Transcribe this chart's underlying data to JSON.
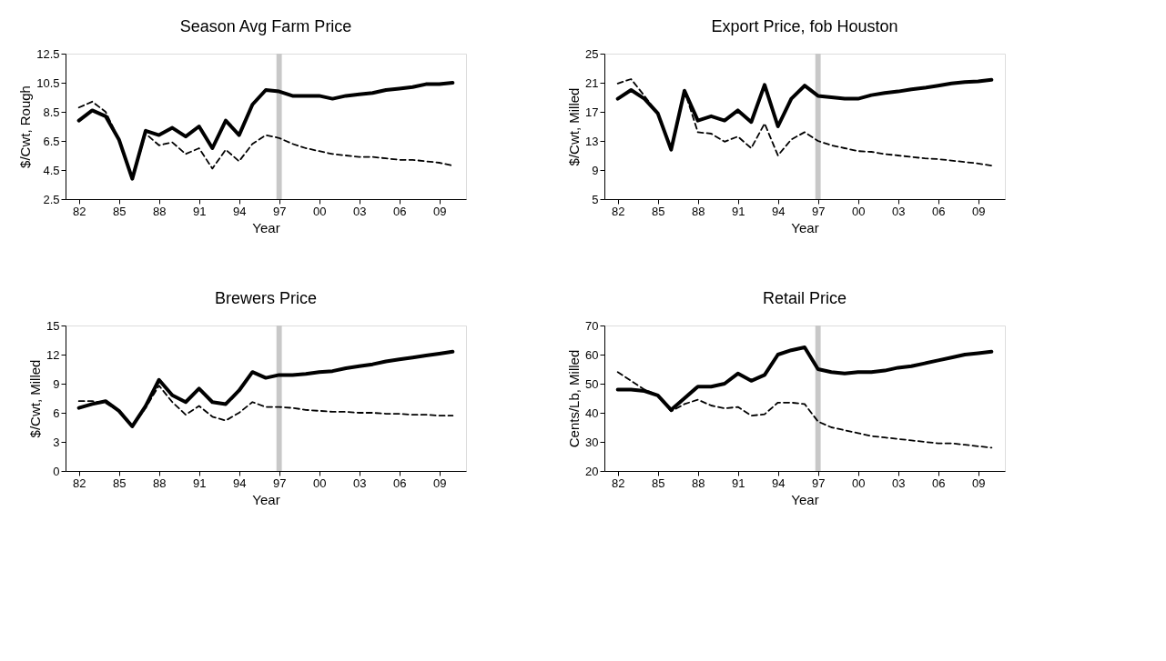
{
  "chart_data": [
    {
      "type": "line",
      "title": "Season Avg Farm Price",
      "xlabel": "Year",
      "ylabel": "$/Cwt, Rough",
      "grid": false,
      "marker": "none",
      "x": [
        1982,
        1983,
        1984,
        1985,
        1986,
        1987,
        1988,
        1989,
        1990,
        1991,
        1992,
        1993,
        1994,
        1995,
        1996,
        1997,
        1998,
        1999,
        2000,
        2001,
        2002,
        2003,
        2004,
        2005,
        2006,
        2007,
        2008,
        2009,
        2010
      ],
      "xlim": [
        1981,
        2011
      ],
      "xticks": [
        {
          "value": 1982,
          "label": "82"
        },
        {
          "value": 1985,
          "label": "85"
        },
        {
          "value": 1988,
          "label": "88"
        },
        {
          "value": 1991,
          "label": "91"
        },
        {
          "value": 1994,
          "label": "94"
        },
        {
          "value": 1997,
          "label": "97"
        },
        {
          "value": 2000,
          "label": "00"
        },
        {
          "value": 2003,
          "label": "03"
        },
        {
          "value": 2006,
          "label": "06"
        },
        {
          "value": 2009,
          "label": "09"
        }
      ],
      "ylim": [
        2.5,
        12.5
      ],
      "yticks": [
        2.5,
        4.5,
        6.5,
        8.5,
        10.5,
        12.5
      ],
      "bands": [
        {
          "axis": "x",
          "from": 1996.8,
          "to": 1997.2,
          "color": "#c8c8c8"
        }
      ],
      "series": [
        {
          "color": "#000000",
          "line_style": "solid",
          "values": [
            7.9,
            8.6,
            8.2,
            6.6,
            3.9,
            7.2,
            6.9,
            7.4,
            6.8,
            7.5,
            6.0,
            7.9,
            6.9,
            9.0,
            10.0,
            9.9,
            9.6,
            9.6,
            9.6,
            9.4,
            9.6,
            9.7,
            9.8,
            10.0,
            10.1,
            10.2,
            10.4,
            10.4,
            10.5
          ]
        },
        {
          "color": "#000000",
          "line_style": "dashed",
          "values": [
            8.8,
            9.2,
            8.5,
            6.6,
            3.9,
            7.0,
            6.2,
            6.4,
            5.6,
            6.0,
            4.6,
            5.9,
            5.1,
            6.3,
            6.9,
            6.7,
            6.3,
            6.0,
            5.8,
            5.6,
            5.5,
            5.4,
            5.4,
            5.3,
            5.2,
            5.2,
            5.1,
            5.0,
            4.8
          ]
        }
      ]
    },
    {
      "type": "line",
      "title": "Export Price, fob Houston",
      "xlabel": "Year",
      "ylabel": "$/Cwt, Milled",
      "grid": false,
      "marker": "none",
      "x": [
        1982,
        1983,
        1984,
        1985,
        1986,
        1987,
        1988,
        1989,
        1990,
        1991,
        1992,
        1993,
        1994,
        1995,
        1996,
        1997,
        1998,
        1999,
        2000,
        2001,
        2002,
        2003,
        2004,
        2005,
        2006,
        2007,
        2008,
        2009,
        2010
      ],
      "xlim": [
        1981,
        2011
      ],
      "xticks": [
        {
          "value": 1982,
          "label": "82"
        },
        {
          "value": 1985,
          "label": "85"
        },
        {
          "value": 1988,
          "label": "88"
        },
        {
          "value": 1991,
          "label": "91"
        },
        {
          "value": 1994,
          "label": "94"
        },
        {
          "value": 1997,
          "label": "97"
        },
        {
          "value": 2000,
          "label": "00"
        },
        {
          "value": 2003,
          "label": "03"
        },
        {
          "value": 2006,
          "label": "06"
        },
        {
          "value": 2009,
          "label": "09"
        }
      ],
      "ylim": [
        5,
        25
      ],
      "yticks": [
        5,
        9,
        13,
        17,
        21,
        25
      ],
      "bands": [
        {
          "axis": "x",
          "from": 1996.8,
          "to": 1997.2,
          "color": "#c8c8c8"
        }
      ],
      "series": [
        {
          "color": "#000000",
          "line_style": "solid",
          "values": [
            18.8,
            20.0,
            18.8,
            16.8,
            11.8,
            19.9,
            15.8,
            16.4,
            15.8,
            17.2,
            15.6,
            20.7,
            15.0,
            18.8,
            20.6,
            19.2,
            19.0,
            18.8,
            18.8,
            19.3,
            19.6,
            19.8,
            20.1,
            20.3,
            20.6,
            20.9,
            21.1,
            21.2,
            21.4
          ]
        },
        {
          "color": "#000000",
          "line_style": "dashed",
          "values": [
            20.9,
            21.5,
            19.2,
            16.8,
            11.8,
            19.9,
            14.2,
            14.0,
            12.9,
            13.6,
            12.0,
            15.4,
            11.0,
            13.2,
            14.2,
            13.0,
            12.4,
            12.0,
            11.6,
            11.5,
            11.2,
            11.0,
            10.8,
            10.6,
            10.5,
            10.3,
            10.1,
            9.9,
            9.6
          ]
        }
      ]
    },
    {
      "type": "line",
      "title": "Brewers Price",
      "xlabel": "Year",
      "ylabel": "$/Cwt, Milled",
      "grid": false,
      "marker": "none",
      "x": [
        1982,
        1983,
        1984,
        1985,
        1986,
        1987,
        1988,
        1989,
        1990,
        1991,
        1992,
        1993,
        1994,
        1995,
        1996,
        1997,
        1998,
        1999,
        2000,
        2001,
        2002,
        2003,
        2004,
        2005,
        2006,
        2007,
        2008,
        2009,
        2010
      ],
      "xlim": [
        1981,
        2011
      ],
      "xticks": [
        {
          "value": 1982,
          "label": "82"
        },
        {
          "value": 1985,
          "label": "85"
        },
        {
          "value": 1988,
          "label": "88"
        },
        {
          "value": 1991,
          "label": "91"
        },
        {
          "value": 1994,
          "label": "94"
        },
        {
          "value": 1997,
          "label": "97"
        },
        {
          "value": 2000,
          "label": "00"
        },
        {
          "value": 2003,
          "label": "03"
        },
        {
          "value": 2006,
          "label": "06"
        },
        {
          "value": 2009,
          "label": "09"
        }
      ],
      "ylim": [
        0,
        15
      ],
      "yticks": [
        0,
        3,
        6,
        9,
        12,
        15
      ],
      "bands": [
        {
          "axis": "x",
          "from": 1996.8,
          "to": 1997.2,
          "color": "#c8c8c8"
        }
      ],
      "series": [
        {
          "color": "#000000",
          "line_style": "solid",
          "values": [
            6.5,
            6.9,
            7.2,
            6.2,
            4.6,
            6.7,
            9.4,
            7.8,
            7.1,
            8.5,
            7.1,
            6.9,
            8.3,
            10.2,
            9.6,
            9.9,
            9.9,
            10.0,
            10.2,
            10.3,
            10.6,
            10.8,
            11.0,
            11.3,
            11.5,
            11.7,
            11.9,
            12.1,
            12.3
          ]
        },
        {
          "color": "#000000",
          "line_style": "dashed",
          "values": [
            7.2,
            7.2,
            7.0,
            6.2,
            4.6,
            6.5,
            8.8,
            7.1,
            5.8,
            6.7,
            5.6,
            5.2,
            6.0,
            7.1,
            6.6,
            6.6,
            6.5,
            6.3,
            6.2,
            6.1,
            6.1,
            6.0,
            6.0,
            5.9,
            5.9,
            5.8,
            5.8,
            5.7,
            5.7
          ]
        }
      ]
    },
    {
      "type": "line",
      "title": "Retail Price",
      "xlabel": "Year",
      "ylabel": "Cents/Lb, Milled",
      "grid": false,
      "marker": "none",
      "x": [
        1982,
        1983,
        1984,
        1985,
        1986,
        1987,
        1988,
        1989,
        1990,
        1991,
        1992,
        1993,
        1994,
        1995,
        1996,
        1997,
        1998,
        1999,
        2000,
        2001,
        2002,
        2003,
        2004,
        2005,
        2006,
        2007,
        2008,
        2009,
        2010
      ],
      "xlim": [
        1981,
        2011
      ],
      "xticks": [
        {
          "value": 1982,
          "label": "82"
        },
        {
          "value": 1985,
          "label": "85"
        },
        {
          "value": 1988,
          "label": "88"
        },
        {
          "value": 1991,
          "label": "91"
        },
        {
          "value": 1994,
          "label": "94"
        },
        {
          "value": 1997,
          "label": "97"
        },
        {
          "value": 2000,
          "label": "00"
        },
        {
          "value": 2003,
          "label": "03"
        },
        {
          "value": 2006,
          "label": "06"
        },
        {
          "value": 2009,
          "label": "09"
        }
      ],
      "ylim": [
        20,
        70
      ],
      "yticks": [
        20,
        30,
        40,
        50,
        60,
        70
      ],
      "bands": [
        {
          "axis": "x",
          "from": 1996.8,
          "to": 1997.2,
          "color": "#c8c8c8"
        }
      ],
      "series": [
        {
          "color": "#000000",
          "line_style": "solid",
          "values": [
            48,
            48,
            47.5,
            46,
            41,
            45,
            49,
            49,
            50,
            53.5,
            51,
            53,
            60,
            61.5,
            62.5,
            55,
            54,
            53.5,
            54,
            54,
            54.5,
            55.5,
            56,
            57,
            58,
            59,
            60,
            60.5,
            61
          ]
        },
        {
          "color": "#000000",
          "line_style": "dashed",
          "values": [
            54,
            51,
            48,
            46,
            40.5,
            43,
            44.5,
            42.5,
            41.5,
            42,
            39,
            39.5,
            43.5,
            43.5,
            43,
            37,
            35,
            34,
            33,
            32,
            31.5,
            31,
            30.5,
            30,
            29.5,
            29.5,
            29,
            28.5,
            28
          ]
        }
      ]
    }
  ]
}
